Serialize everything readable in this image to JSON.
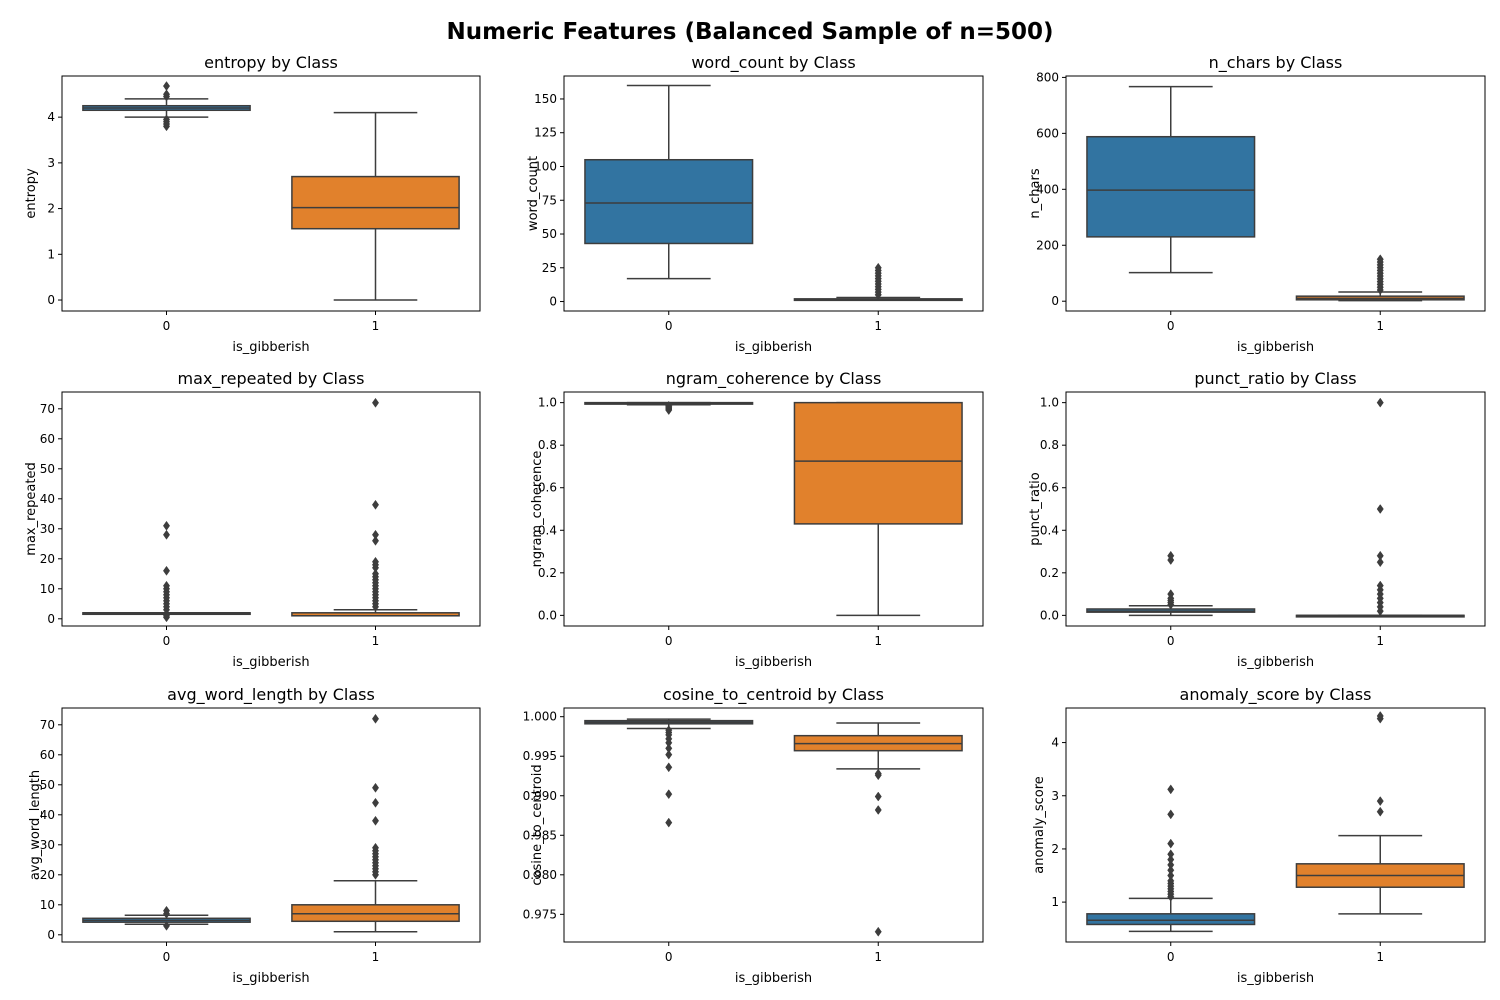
{
  "figure": {
    "title": "Numeric Features (Balanced Sample of n=500)",
    "colors": {
      "class_0": "#3274a1",
      "class_1": "#e1812c",
      "line": "#3d3d3d"
    }
  },
  "chart_data": [
    {
      "type": "box",
      "title": "entropy by Class",
      "xlabel": "is_gibberish",
      "ylabel": "entropy",
      "categories": [
        "0",
        "1"
      ],
      "ylim": [
        -0.24,
        4.9
      ],
      "yticks": [
        0,
        1,
        2,
        3,
        4
      ],
      "boxes": [
        {
          "whisker_low": 4.0,
          "q1": 4.15,
          "median": 4.2,
          "q3": 4.25,
          "whisker_high": 4.4,
          "outliers": [
            3.8,
            3.85,
            3.9,
            3.95,
            4.45,
            4.5,
            4.68
          ]
        },
        {
          "whisker_low": 0.0,
          "q1": 1.56,
          "median": 2.02,
          "q3": 2.7,
          "whisker_high": 4.1,
          "outliers": []
        }
      ]
    },
    {
      "type": "box",
      "title": "word_count by Class",
      "xlabel": "is_gibberish",
      "ylabel": "word_count",
      "categories": [
        "0",
        "1"
      ],
      "ylim": [
        -7,
        167
      ],
      "yticks": [
        0,
        25,
        50,
        75,
        100,
        125,
        150
      ],
      "boxes": [
        {
          "whisker_low": 17,
          "q1": 43,
          "median": 73,
          "q3": 105,
          "whisker_high": 160,
          "outliers": []
        },
        {
          "whisker_low": 1,
          "q1": 1,
          "median": 1,
          "q3": 2,
          "whisker_high": 3,
          "outliers": [
            5,
            7,
            9,
            11,
            13,
            15,
            17,
            19,
            21,
            23,
            25
          ]
        }
      ]
    },
    {
      "type": "box",
      "title": "n_chars by Class",
      "xlabel": "is_gibberish",
      "ylabel": "n_chars",
      "categories": [
        "0",
        "1"
      ],
      "ylim": [
        -35,
        805
      ],
      "yticks": [
        0,
        200,
        400,
        600,
        800
      ],
      "boxes": [
        {
          "whisker_low": 102,
          "q1": 230,
          "median": 397,
          "q3": 588,
          "whisker_high": 767,
          "outliers": []
        },
        {
          "whisker_low": 2,
          "q1": 5,
          "median": 10,
          "q3": 18,
          "whisker_high": 33,
          "outliers": [
            40,
            50,
            60,
            70,
            80,
            90,
            100,
            110,
            120,
            130,
            140,
            150
          ]
        }
      ]
    },
    {
      "type": "box",
      "title": "max_repeated by Class",
      "xlabel": "is_gibberish",
      "ylabel": "max_repeated",
      "categories": [
        "0",
        "1"
      ],
      "ylim": [
        -2.4,
        75.6
      ],
      "yticks": [
        0,
        10,
        20,
        30,
        40,
        50,
        60,
        70
      ],
      "boxes": [
        {
          "whisker_low": 2,
          "q1": 2,
          "median": 2,
          "q3": 2,
          "whisker_high": 2,
          "outliers": [
            0.5,
            1,
            3,
            4,
            5,
            6,
            7,
            8,
            9,
            10,
            11,
            16,
            28,
            31
          ]
        },
        {
          "whisker_low": 1,
          "q1": 1,
          "median": 1,
          "q3": 2,
          "whisker_high": 3,
          "outliers": [
            4,
            5,
            6,
            7,
            8,
            9,
            10,
            11,
            12,
            13,
            14,
            15,
            17,
            18,
            19,
            26,
            28,
            38,
            72
          ]
        }
      ]
    },
    {
      "type": "box",
      "title": "ngram_coherence by Class",
      "xlabel": "is_gibberish",
      "ylabel": "ngram_coherence",
      "categories": [
        "0",
        "1"
      ],
      "ylim": [
        -0.05,
        1.05
      ],
      "yticks": [
        0.0,
        0.2,
        0.4,
        0.6,
        0.8,
        1.0
      ],
      "tick_decimals": 1,
      "boxes": [
        {
          "whisker_low": 0.99,
          "q1": 0.995,
          "median": 0.999,
          "q3": 1.0,
          "whisker_high": 1.0,
          "outliers": [
            0.965,
            0.97,
            0.975,
            0.98,
            0.985
          ]
        },
        {
          "whisker_low": 0.0,
          "q1": 0.43,
          "median": 0.725,
          "q3": 1.0,
          "whisker_high": 1.0,
          "outliers": []
        }
      ]
    },
    {
      "type": "box",
      "title": "punct_ratio by Class",
      "xlabel": "is_gibberish",
      "ylabel": "punct_ratio",
      "categories": [
        "0",
        "1"
      ],
      "ylim": [
        -0.05,
        1.05
      ],
      "yticks": [
        0.0,
        0.2,
        0.4,
        0.6,
        0.8,
        1.0
      ],
      "tick_decimals": 1,
      "boxes": [
        {
          "whisker_low": 0.0,
          "q1": 0.015,
          "median": 0.02,
          "q3": 0.03,
          "whisker_high": 0.045,
          "outliers": [
            0.05,
            0.06,
            0.07,
            0.08,
            0.1,
            0.26,
            0.28
          ]
        },
        {
          "whisker_low": 0.0,
          "q1": 0.0,
          "median": 0.0,
          "q3": 0.0,
          "whisker_high": 0.0,
          "outliers": [
            0.02,
            0.04,
            0.06,
            0.08,
            0.1,
            0.12,
            0.14,
            0.25,
            0.28,
            0.5,
            1.0
          ]
        }
      ]
    },
    {
      "type": "box",
      "title": "avg_word_length by Class",
      "xlabel": "is_gibberish",
      "ylabel": "avg_word_length",
      "categories": [
        "0",
        "1"
      ],
      "ylim": [
        -2.4,
        75.6
      ],
      "yticks": [
        0,
        10,
        20,
        30,
        40,
        50,
        60,
        70
      ],
      "boxes": [
        {
          "whisker_low": 3.5,
          "q1": 4.2,
          "median": 4.8,
          "q3": 5.5,
          "whisker_high": 6.5,
          "outliers": [
            3,
            7,
            8
          ]
        },
        {
          "whisker_low": 1,
          "q1": 4.5,
          "median": 7,
          "q3": 10,
          "whisker_high": 18,
          "outliers": [
            20,
            21,
            22,
            23,
            24,
            25,
            26,
            27,
            28,
            29,
            38,
            44,
            49,
            72
          ]
        }
      ]
    },
    {
      "type": "box",
      "title": "cosine_to_centroid by Class",
      "xlabel": "is_gibberish",
      "ylabel": "cosine_to_centroid",
      "categories": [
        "0",
        "1"
      ],
      "ylim": [
        0.9715,
        1.0011
      ],
      "yticks": [
        0.975,
        0.98,
        0.985,
        0.99,
        0.995,
        1.0
      ],
      "tick_decimals": 3,
      "boxes": [
        {
          "whisker_low": 0.9985,
          "q1": 0.9991,
          "median": 0.9993,
          "q3": 0.9995,
          "whisker_high": 0.9997,
          "outliers": [
            0.9866,
            0.9902,
            0.9936,
            0.9952,
            0.996,
            0.9967,
            0.9972,
            0.9977,
            0.998,
            0.9983
          ]
        },
        {
          "whisker_low": 0.9934,
          "q1": 0.9957,
          "median": 0.9966,
          "q3": 0.9976,
          "whisker_high": 0.9992,
          "outliers": [
            0.9728,
            0.9882,
            0.9899,
            0.9926,
            0.9928
          ]
        }
      ]
    },
    {
      "type": "box",
      "title": "anomaly_score by Class",
      "xlabel": "is_gibberish",
      "ylabel": "anomaly_score",
      "categories": [
        "0",
        "1"
      ],
      "ylim": [
        0.25,
        4.65
      ],
      "yticks": [
        1,
        2,
        3,
        4
      ],
      "boxes": [
        {
          "whisker_low": 0.45,
          "q1": 0.58,
          "median": 0.66,
          "q3": 0.78,
          "whisker_high": 1.07,
          "outliers": [
            1.1,
            1.15,
            1.2,
            1.25,
            1.3,
            1.35,
            1.4,
            1.5,
            1.6,
            1.7,
            1.8,
            1.9,
            2.1,
            2.65,
            3.12
          ]
        },
        {
          "whisker_low": 0.78,
          "q1": 1.28,
          "median": 1.5,
          "q3": 1.72,
          "whisker_high": 2.25,
          "outliers": [
            2.7,
            2.9,
            4.45,
            4.5
          ]
        }
      ]
    }
  ]
}
